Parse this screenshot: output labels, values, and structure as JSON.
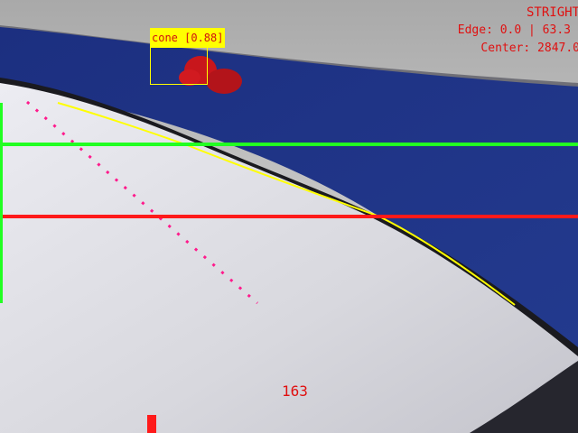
{
  "hud": {
    "mode": "STRIGHT",
    "edge_text": "Edge: 0.0 | 63.3",
    "center_text": "Center: 2847.0",
    "steering_value": "163"
  },
  "detection": {
    "label": "cone [0.88]",
    "label_bg": "#ffff00",
    "label_fg": "#d01010",
    "box_color": "#ffff00"
  },
  "overlay": {
    "green": "#22ff22",
    "red": "#ff1a1a",
    "magenta": "#ff1a8c",
    "yellow": "#ffff00",
    "hud_text": "#e01010"
  }
}
